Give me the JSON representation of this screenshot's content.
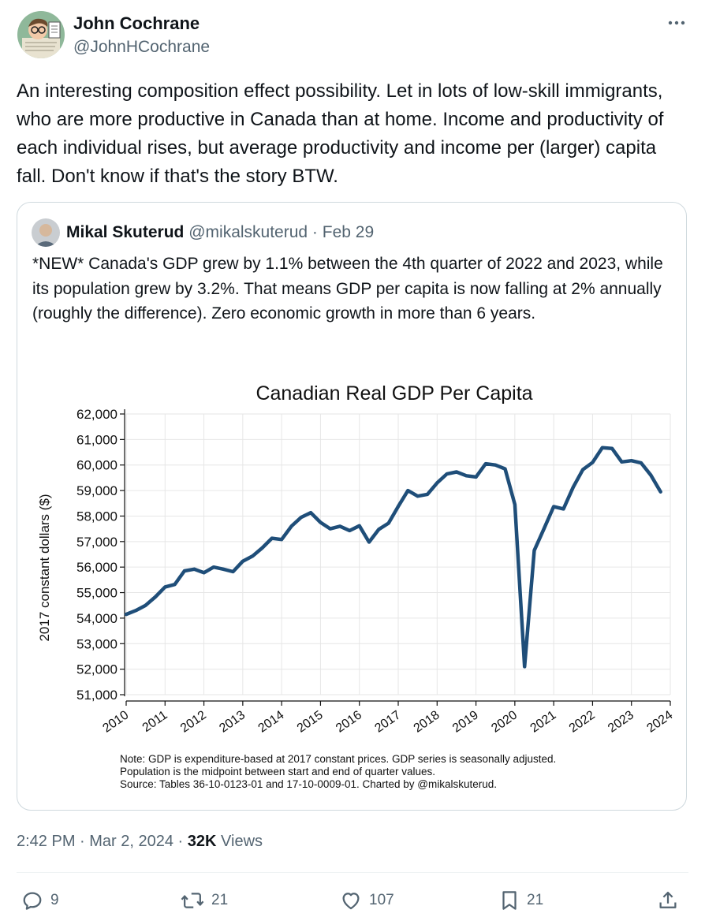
{
  "tweet": {
    "author_name": "John Cochrane",
    "author_handle": "@JohnHCochrane",
    "text": "An interesting composition effect possibility. Let in lots of low-skill immigrants, who are more productive in Canada than at home. Income and productivity of each individual rises, but average productivity and income per (larger) capita fall. Don't know if that's the story BTW.",
    "timestamp": "2:42 PM · Mar 2, 2024 · ",
    "views_count": "32K",
    "views_label": " Views"
  },
  "quote": {
    "author_name": "Mikal Skuterud",
    "author_handle": "@mikalskuterud",
    "separator": " · ",
    "date": "Feb 29",
    "text": "*NEW* Canada's GDP grew by 1.1% between the 4th quarter of 2022 and 2023, while its population grew by 3.2%. That means GDP per capita is now falling at 2% annually (roughly the difference).  Zero economic growth in more than 6 years."
  },
  "actions": {
    "replies": "9",
    "reposts": "21",
    "likes": "107",
    "bookmarks": "21"
  },
  "icons": {
    "more": "more-icon",
    "reply": "reply-icon",
    "repost": "repost-icon",
    "like": "heart-icon",
    "bookmark": "bookmark-icon",
    "share": "share-icon"
  },
  "colors": {
    "text_primary": "#0f1419",
    "text_secondary": "#536471",
    "line": "#1f4e79",
    "border": "#cfd9de"
  },
  "chart_data": {
    "type": "line",
    "title": "Canadian Real GDP Per Capita",
    "xlabel": "",
    "ylabel": "2017 constant dollars ($)",
    "xlim": [
      2010,
      2024
    ],
    "ylim": [
      51000,
      62000
    ],
    "x_ticks": [
      "2010",
      "2011",
      "2012",
      "2013",
      "2014",
      "2015",
      "2016",
      "2017",
      "2018",
      "2019",
      "2020",
      "2021",
      "2022",
      "2023",
      "2024"
    ],
    "y_ticks": [
      "51,000",
      "52,000",
      "53,000",
      "54,000",
      "55,000",
      "56,000",
      "57,000",
      "58,000",
      "59,000",
      "60,000",
      "61,000",
      "62,000"
    ],
    "grid": true,
    "note_lines": [
      "Note: GDP is expenditure-based at 2017 constant prices. GDP series is seasonally adjusted.",
      "Population is the midpoint between start and end of quarter values.",
      "Source: Tables 36-10-0123-01 and 17-10-0009-01. Charted by @mikalskuterud."
    ],
    "series": [
      {
        "x": [
          2010.0,
          2010.25,
          2010.5,
          2010.75,
          2011.0,
          2011.25,
          2011.5,
          2011.75,
          2012.0,
          2012.25,
          2012.5,
          2012.75,
          2013.0,
          2013.25,
          2013.5,
          2013.75,
          2014.0,
          2014.25,
          2014.5,
          2014.75,
          2015.0,
          2015.25,
          2015.5,
          2015.75,
          2016.0,
          2016.25,
          2016.5,
          2016.75,
          2017.0,
          2017.25,
          2017.5,
          2017.75,
          2018.0,
          2018.25,
          2018.5,
          2018.75,
          2019.0,
          2019.25,
          2019.5,
          2019.75,
          2020.0,
          2020.25,
          2020.5,
          2020.75,
          2021.0,
          2021.25,
          2021.5,
          2021.75,
          2022.0,
          2022.25,
          2022.5,
          2022.75,
          2023.0,
          2023.25,
          2023.5,
          2023.75
        ],
        "y": [
          54150,
          54300,
          54500,
          54830,
          55220,
          55320,
          55850,
          55920,
          55780,
          56000,
          55920,
          55820,
          56230,
          56430,
          56750,
          57130,
          57080,
          57600,
          57950,
          58130,
          57750,
          57500,
          57600,
          57430,
          57620,
          56980,
          57480,
          57720,
          58380,
          59000,
          58780,
          58850,
          59300,
          59650,
          59730,
          59580,
          59530,
          60050,
          60000,
          59850,
          58450,
          52100,
          56650,
          57500,
          58370,
          58280,
          59130,
          59820,
          60100,
          60680,
          60650,
          60120,
          60170,
          60080,
          59600,
          58950
        ]
      }
    ]
  }
}
